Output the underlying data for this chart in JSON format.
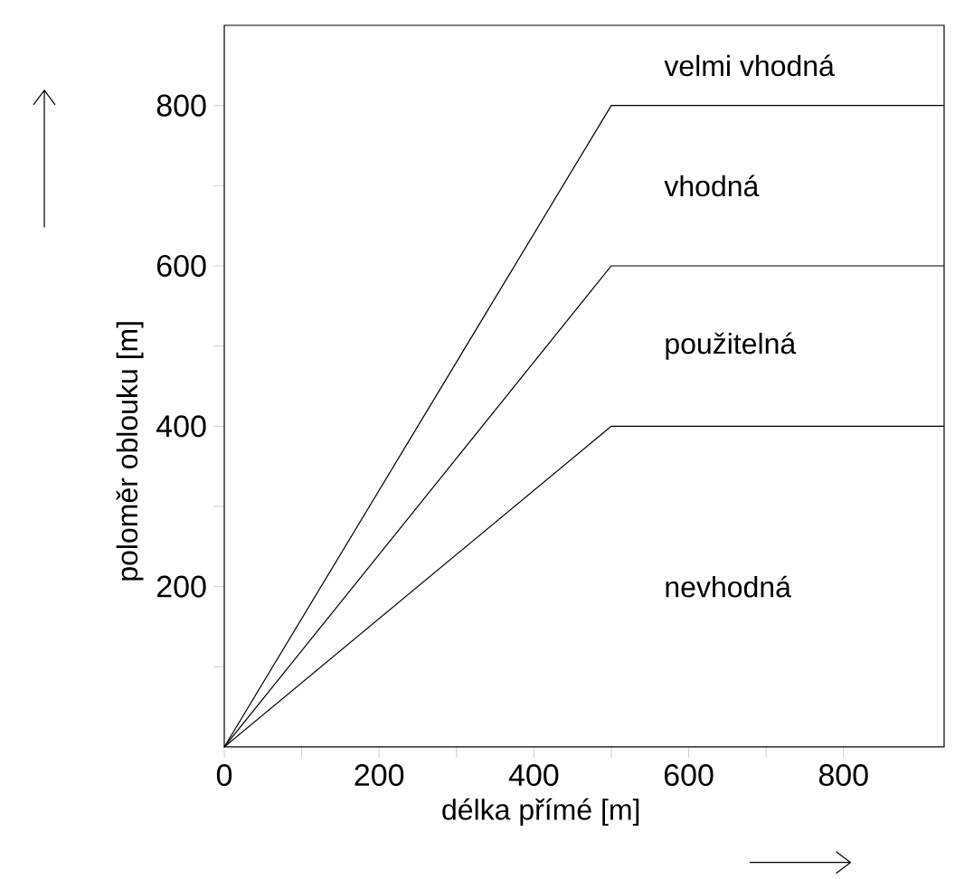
{
  "chart_data": {
    "type": "line",
    "xlabel": "délka přímé [m]",
    "ylabel": "poloměr oblouku [m]",
    "x": [
      0,
      500,
      930
    ],
    "series": [
      {
        "color": "#000000",
        "values": [
          0,
          800,
          800
        ]
      },
      {
        "color": "#000000",
        "values": [
          0,
          600,
          600
        ]
      },
      {
        "color": "#000000",
        "values": [
          0,
          400,
          400
        ]
      }
    ],
    "xlim": [
      0,
      930
    ],
    "ylim": [
      0,
      900
    ],
    "xticks": [
      0,
      {
        "value": 100,
        "label": null
      },
      200,
      {
        "value": 300,
        "label": null
      },
      400,
      {
        "value": 500,
        "label": null
      },
      600,
      {
        "value": 700,
        "label": null
      },
      800
    ],
    "yticks": [
      {
        "value": 100,
        "label": null
      },
      200,
      {
        "value": 300,
        "label": null
      },
      400,
      {
        "value": 500,
        "label": null
      },
      600,
      {
        "value": 700,
        "label": null
      },
      800
    ],
    "annotations": [
      "velmi vhodná",
      "vhodná",
      "použitelná",
      "nevhodná"
    ],
    "marker": "none",
    "line_style": "solid"
  }
}
